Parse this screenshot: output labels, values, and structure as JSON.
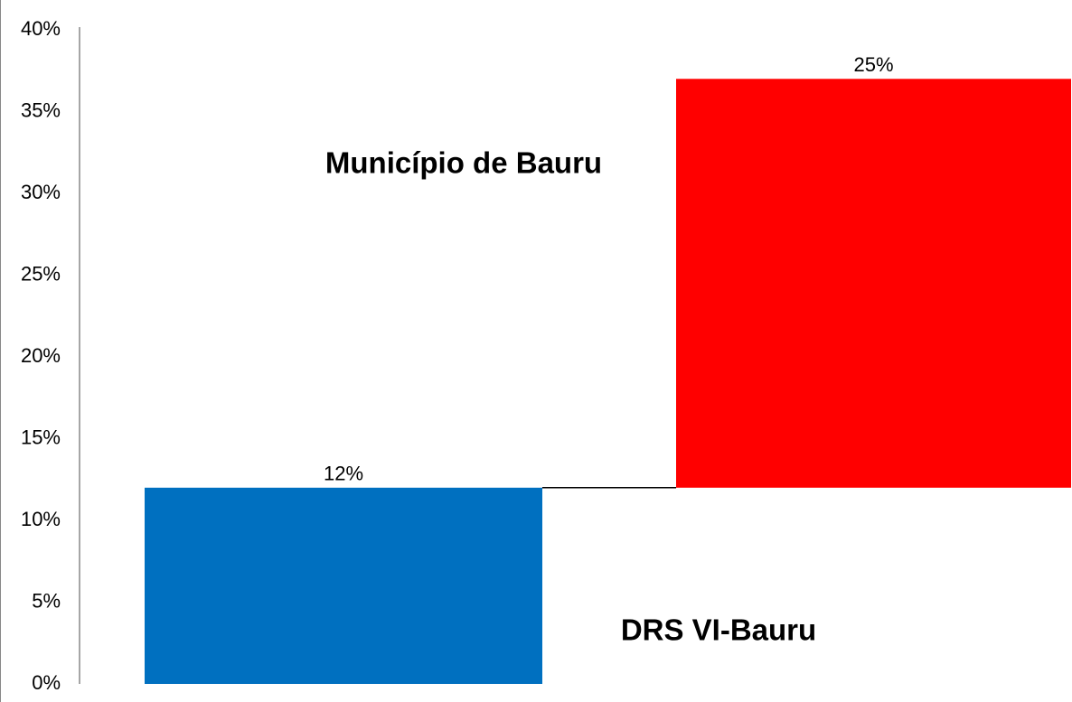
{
  "chart_data": {
    "type": "waterfall",
    "categories": [
      "DRS VI-Bauru",
      "Município de Bauru"
    ],
    "values": [
      12,
      25
    ],
    "value_labels": [
      "12%",
      "25%"
    ],
    "colors": [
      "#0070c0",
      "#ff0000"
    ],
    "ylim": [
      0,
      40
    ],
    "yticks": [
      {
        "value": 0,
        "label": "0%"
      },
      {
        "value": 5,
        "label": "5%"
      },
      {
        "value": 10,
        "label": "10%"
      },
      {
        "value": 15,
        "label": "15%"
      },
      {
        "value": 20,
        "label": "20%"
      },
      {
        "value": 25,
        "label": "25%"
      },
      {
        "value": 30,
        "label": "30%"
      },
      {
        "value": 35,
        "label": "35%"
      },
      {
        "value": 40,
        "label": "40%"
      }
    ],
    "grid": false
  }
}
